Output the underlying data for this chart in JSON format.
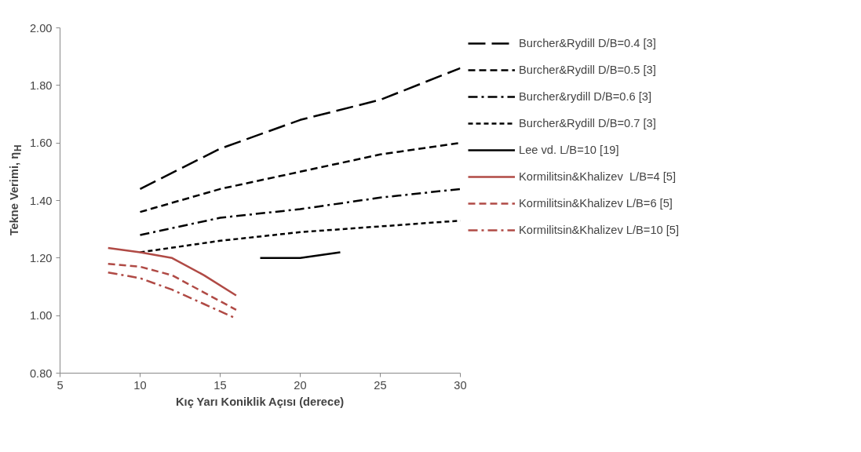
{
  "chart_data": {
    "type": "line",
    "xlabel": "Kıç Yarı Koniklik Açısı (derece)",
    "ylabel": "Tekne Verimi, η$_{H}$",
    "xlim": [
      5,
      30
    ],
    "xticks": [
      5,
      10,
      15,
      20,
      25,
      30
    ],
    "ylim": [
      0.8,
      2.0
    ],
    "yticks": [
      {
        "value": 0.8,
        "label": "0.80"
      },
      {
        "value": 1.0,
        "label": "1.00"
      },
      {
        "value": 1.2,
        "label": "1.20"
      },
      {
        "value": 1.4,
        "label": "1.40"
      },
      {
        "value": 1.6,
        "label": "1.60"
      },
      {
        "value": 1.8,
        "label": "1.80"
      },
      {
        "value": 2.0,
        "label": "2.00"
      }
    ],
    "grid": false,
    "legend": "right",
    "marker": "none",
    "series": [
      {
        "name": "Burcher&Rydill D/B=0.4 [3]",
        "color": "#000000",
        "line_style": "long_dashed",
        "x": [
          10,
          15,
          20,
          25,
          30
        ],
        "values": [
          1.44,
          1.58,
          1.68,
          1.75,
          1.86
        ]
      },
      {
        "name": "Burcher&Rydill D/B=0.5 [3]",
        "color": "#000000",
        "line_style": "dashed",
        "x": [
          10,
          15,
          20,
          25,
          30
        ],
        "values": [
          1.36,
          1.44,
          1.5,
          1.56,
          1.6
        ]
      },
      {
        "name": "Burcher&rydill D/B=0.6 [3]",
        "color": "#000000",
        "line_style": "dash_dot",
        "x": [
          10,
          15,
          20,
          25,
          30
        ],
        "values": [
          1.28,
          1.34,
          1.37,
          1.41,
          1.44
        ]
      },
      {
        "name": "Burcher&Rydill D/B=0.7 [3]",
        "color": "#000000",
        "line_style": "dotted",
        "x": [
          10,
          15,
          20,
          25,
          30
        ],
        "values": [
          1.22,
          1.26,
          1.29,
          1.31,
          1.33
        ]
      },
      {
        "name": "Lee vd. L/B=10 [19]",
        "color": "#000000",
        "line_style": "solid",
        "x": [
          17.5,
          20,
          22.5
        ],
        "values": [
          1.2,
          1.2,
          1.22
        ]
      },
      {
        "name": "Kormilitsin&Khalizev  L/B=4 [5]",
        "color": "#b04a45",
        "line_style": "solid",
        "x": [
          8,
          10,
          12,
          14,
          16
        ],
        "values": [
          1.235,
          1.22,
          1.2,
          1.14,
          1.07
        ]
      },
      {
        "name": "Kormilitsin&Khalizev L/B=6 [5]",
        "color": "#b04a45",
        "line_style": "dashed",
        "x": [
          8,
          10,
          12,
          14,
          16
        ],
        "values": [
          1.18,
          1.17,
          1.14,
          1.08,
          1.02
        ]
      },
      {
        "name": "Kormilitsin&Khalizev L/B=10 [5]",
        "color": "#b04a45",
        "line_style": "dash_dot",
        "x": [
          8,
          10,
          12,
          14,
          16
        ],
        "values": [
          1.15,
          1.13,
          1.09,
          1.04,
          0.99
        ]
      }
    ]
  }
}
